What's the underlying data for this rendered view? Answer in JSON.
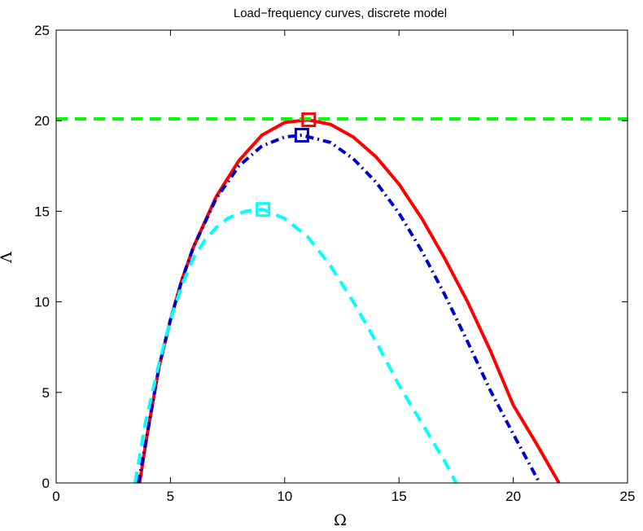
{
  "chart_data": {
    "type": "line",
    "title": "Load−frequency curves, discrete model",
    "xlabel": "Ω",
    "ylabel": "Λ",
    "xlim": [
      0,
      25
    ],
    "ylim": [
      0,
      25
    ],
    "xticks": [
      0,
      5,
      10,
      15,
      20,
      25
    ],
    "yticks": [
      0,
      5,
      10,
      15,
      20,
      25
    ],
    "xtick_labels": [
      "0",
      "5",
      "10",
      "15",
      "20",
      "25"
    ],
    "ytick_labels": [
      "0",
      "5",
      "10",
      "15",
      "20",
      "25"
    ],
    "grid": false,
    "legend": "none",
    "series": [
      {
        "color": "#ff0000",
        "style": "solid",
        "x": [
          3.65,
          4.0,
          4.5,
          5.0,
          5.5,
          6.0,
          7.0,
          8.0,
          9.0,
          10.0,
          11.0,
          12.0,
          13.0,
          14.0,
          15.0,
          16.0,
          17.0,
          18.0,
          19.0,
          20.0,
          21.0,
          22.0
        ],
        "y": [
          0.0,
          2.8,
          6.4,
          9.0,
          11.2,
          13.0,
          15.8,
          17.8,
          19.2,
          19.9,
          20.05,
          19.8,
          19.1,
          18.0,
          16.5,
          14.6,
          12.4,
          10.0,
          7.3,
          4.3,
          2.2,
          0.0
        ]
      },
      {
        "color": "#0000cc",
        "style": "dashdot",
        "x": [
          3.6,
          4.0,
          4.5,
          5.0,
          5.5,
          6.0,
          7.0,
          8.0,
          9.0,
          10.0,
          10.75,
          12.0,
          13.0,
          14.0,
          15.0,
          16.0,
          17.0,
          18.0,
          19.0,
          20.0,
          21.15
        ],
        "y": [
          0.0,
          2.8,
          6.4,
          9.0,
          11.2,
          13.0,
          15.7,
          17.5,
          18.6,
          19.1,
          19.2,
          18.8,
          17.9,
          16.6,
          14.9,
          12.8,
          10.4,
          7.8,
          5.1,
          2.7,
          0.0
        ]
      },
      {
        "color": "#00ffff",
        "style": "dashed",
        "x": [
          3.45,
          3.9,
          4.5,
          5.0,
          5.5,
          6.0,
          6.5,
          7.0,
          7.5,
          8.0,
          8.5,
          9.05,
          10.0,
          11.0,
          12.0,
          13.0,
          14.0,
          15.0,
          16.0,
          17.0,
          17.5
        ],
        "y": [
          0.0,
          3.3,
          6.6,
          9.0,
          10.9,
          12.4,
          13.4,
          14.1,
          14.6,
          14.9,
          15.05,
          15.1,
          14.6,
          13.6,
          12.0,
          10.0,
          7.8,
          5.4,
          3.3,
          1.2,
          0.0
        ]
      },
      {
        "color": "#00ff00",
        "style": "dashed",
        "x": [
          0,
          25
        ],
        "y": [
          20.1,
          20.1
        ]
      }
    ],
    "markers": [
      {
        "color": "#ff0000",
        "shape": "square",
        "x": 11.05,
        "y": 20.05
      },
      {
        "color": "#0000cc",
        "shape": "square",
        "x": 10.75,
        "y": 19.2
      },
      {
        "color": "#00ffff",
        "shape": "square",
        "x": 9.05,
        "y": 15.1
      }
    ]
  }
}
